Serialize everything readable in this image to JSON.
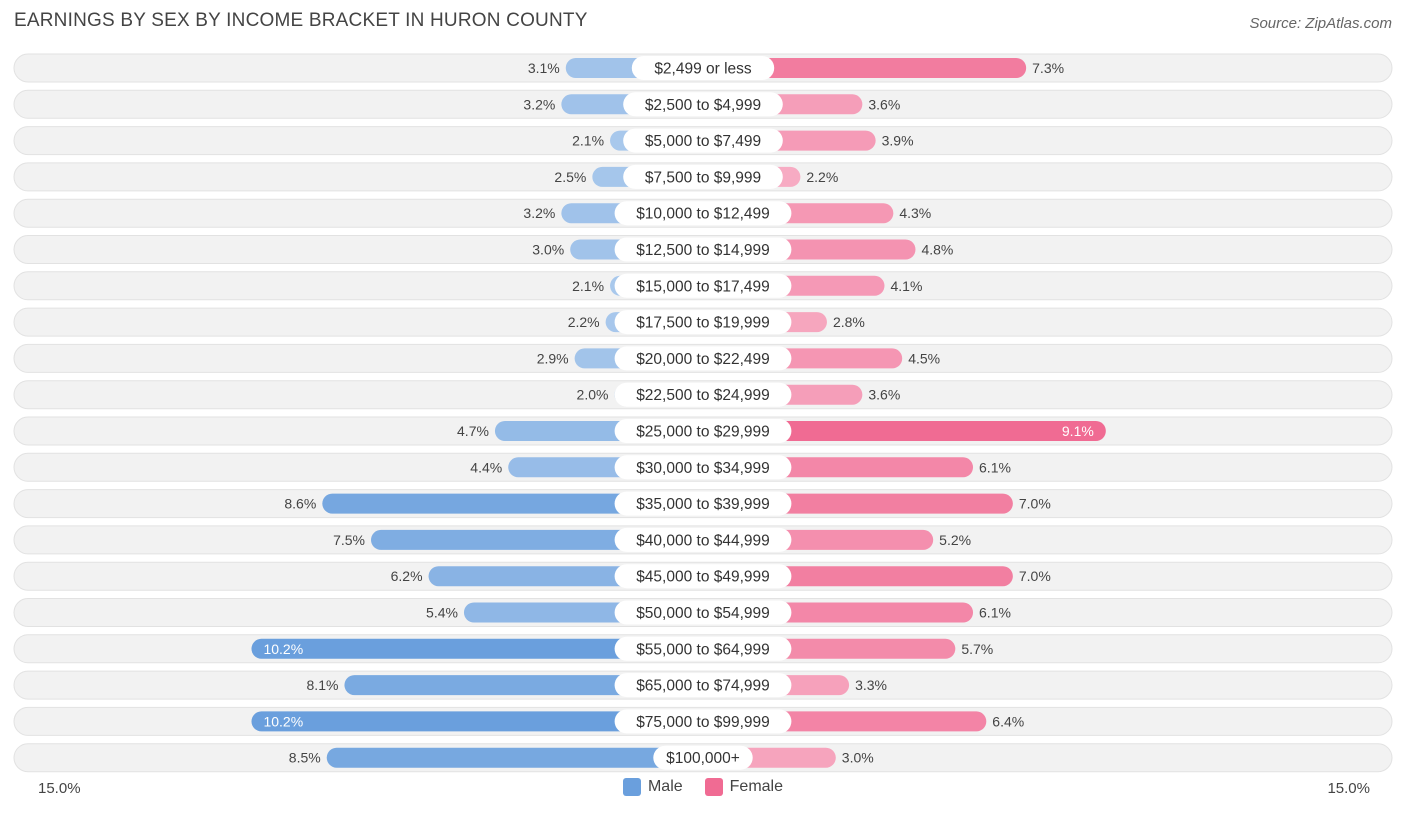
{
  "title": "EARNINGS BY SEX BY INCOME BRACKET IN HURON COUNTY",
  "source": "Source: ZipAtlas.com",
  "axis": {
    "left_label": "15.0%",
    "right_label": "15.0%"
  },
  "legend": {
    "male": "Male",
    "female": "Female"
  },
  "colors": {
    "male": "#6a9fdd",
    "male_light": "#a9c8ec",
    "female": "#f06b93",
    "female_light": "#f7adc4",
    "track": "#f2f2f2"
  },
  "chart_data": {
    "type": "bar",
    "orientation": "horizontal-diverging",
    "title": "EARNINGS BY SEX BY INCOME BRACKET IN HURON COUNTY",
    "xlim": [
      -15.0,
      15.0
    ],
    "categories": [
      "$2,499 or less",
      "$2,500 to $4,999",
      "$5,000 to $7,499",
      "$7,500 to $9,999",
      "$10,000 to $12,499",
      "$12,500 to $14,999",
      "$15,000 to $17,499",
      "$17,500 to $19,999",
      "$20,000 to $22,499",
      "$22,500 to $24,999",
      "$25,000 to $29,999",
      "$30,000 to $34,999",
      "$35,000 to $39,999",
      "$40,000 to $44,999",
      "$45,000 to $49,999",
      "$50,000 to $54,999",
      "$55,000 to $64,999",
      "$65,000 to $74,999",
      "$75,000 to $99,999",
      "$100,000+"
    ],
    "series": [
      {
        "name": "Male",
        "values": [
          3.1,
          3.2,
          2.1,
          2.5,
          3.2,
          3.0,
          2.1,
          2.2,
          2.9,
          2.0,
          4.7,
          4.4,
          8.6,
          7.5,
          6.2,
          5.4,
          10.2,
          8.1,
          10.2,
          8.5
        ],
        "labels": [
          "3.1%",
          "3.2%",
          "2.1%",
          "2.5%",
          "3.2%",
          "3.0%",
          "2.1%",
          "2.2%",
          "2.9%",
          "2.0%",
          "4.7%",
          "4.4%",
          "8.6%",
          "7.5%",
          "6.2%",
          "5.4%",
          "10.2%",
          "8.1%",
          "10.2%",
          "8.5%"
        ]
      },
      {
        "name": "Female",
        "values": [
          7.3,
          3.6,
          3.9,
          2.2,
          4.3,
          4.8,
          4.1,
          2.8,
          4.5,
          3.6,
          9.1,
          6.1,
          7.0,
          5.2,
          7.0,
          6.1,
          5.7,
          3.3,
          6.4,
          3.0
        ],
        "labels": [
          "7.3%",
          "3.6%",
          "3.9%",
          "2.2%",
          "4.3%",
          "4.8%",
          "4.1%",
          "2.8%",
          "4.5%",
          "3.6%",
          "9.1%",
          "6.1%",
          "7.0%",
          "5.2%",
          "7.0%",
          "6.1%",
          "5.7%",
          "3.3%",
          "6.4%",
          "3.0%"
        ]
      }
    ]
  }
}
